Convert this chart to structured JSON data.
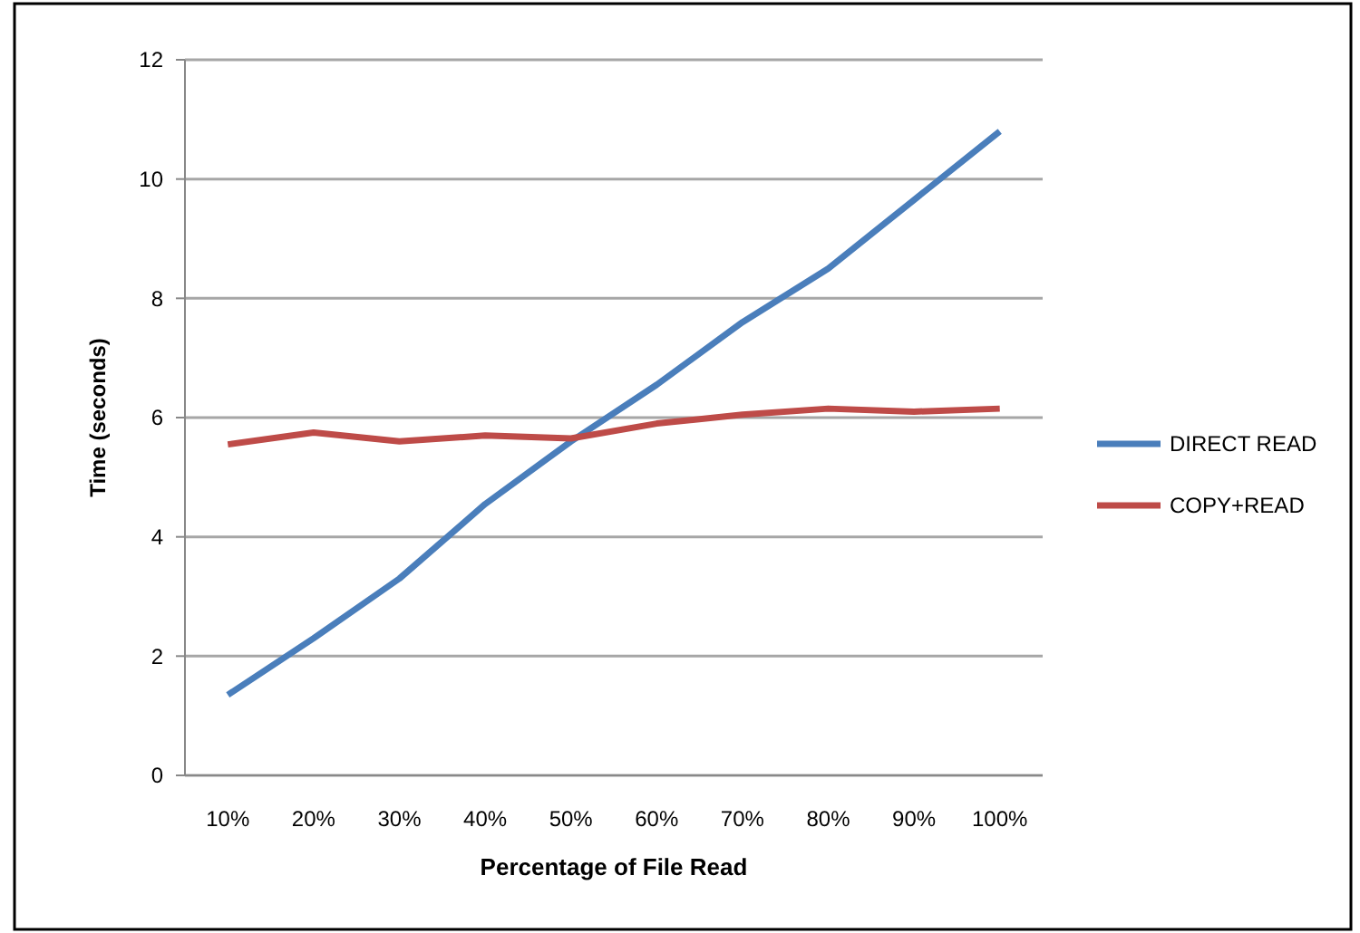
{
  "chart_data": {
    "type": "line",
    "xlabel": "Percentage of File Read",
    "ylabel": "Time (seconds)",
    "categories": [
      "10%",
      "20%",
      "30%",
      "40%",
      "50%",
      "60%",
      "70%",
      "80%",
      "90%",
      "100%"
    ],
    "series": [
      {
        "name": "DIRECT READ",
        "color": "#4a7ebb",
        "values": [
          1.35,
          2.3,
          3.3,
          4.55,
          5.6,
          6.55,
          7.6,
          8.5,
          9.65,
          10.8
        ]
      },
      {
        "name": "COPY+READ",
        "color": "#be4b48",
        "values": [
          5.55,
          5.75,
          5.6,
          5.7,
          5.65,
          5.9,
          6.05,
          6.15,
          6.1,
          6.15
        ]
      }
    ],
    "ylim": [
      0,
      12
    ],
    "yticks": [
      0,
      2,
      4,
      6,
      8,
      10,
      12
    ],
    "grid": "y",
    "legend": "right",
    "marker": "none",
    "line_style": "solid"
  }
}
